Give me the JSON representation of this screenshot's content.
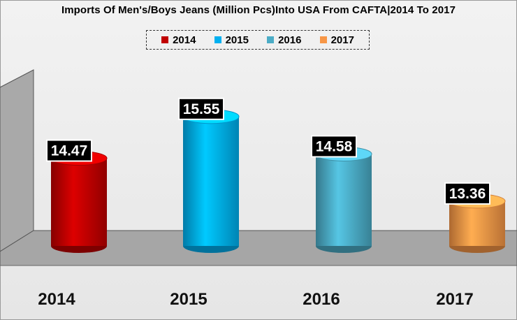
{
  "title": "Imports Of Men's/Boys Jeans (Million Pcs)Into USA From CAFTA|2014 To 2017",
  "chart_data": {
    "type": "bar",
    "categories": [
      "2014",
      "2015",
      "2016",
      "2017"
    ],
    "values": [
      14.47,
      15.55,
      14.58,
      13.36
    ],
    "title": "Imports Of Men's/Boys Jeans (Million Pcs)Into USA From CAFTA|2014 To 2017",
    "legend": [
      "2014",
      "2015",
      "2016",
      "2017"
    ],
    "legend_position": "top",
    "colors": [
      "#c00000",
      "#00b0f0",
      "#4bacc6",
      "#f79646"
    ],
    "grid": false,
    "ylim": [
      12.2,
      15.8
    ]
  }
}
